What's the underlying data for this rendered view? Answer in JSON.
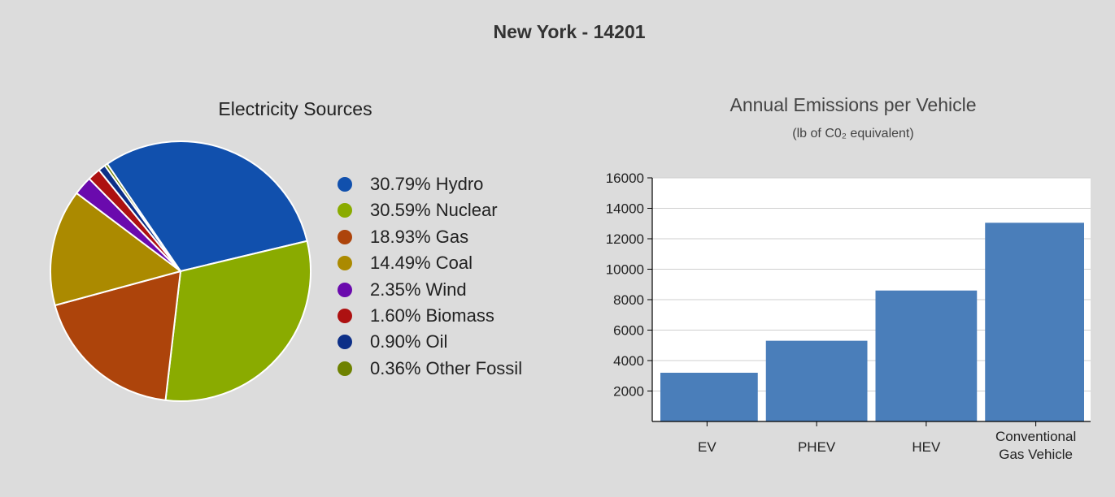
{
  "page": {
    "title": "New York - 14201"
  },
  "chart_data": [
    {
      "type": "pie",
      "title": "Electricity Sources",
      "slices": [
        {
          "label": "30.79% Hydro",
          "name": "Hydro",
          "value": 30.79,
          "color": "#1150ad"
        },
        {
          "label": "30.59% Nuclear",
          "name": "Nuclear",
          "value": 30.59,
          "color": "#8aab00"
        },
        {
          "label": "18.93% Gas",
          "name": "Gas",
          "value": 18.93,
          "color": "#ad440b"
        },
        {
          "label": "14.49% Coal",
          "name": "Coal",
          "value": 14.49,
          "color": "#ab8a00"
        },
        {
          "label": "2.35% Wind",
          "name": "Wind",
          "value": 2.35,
          "color": "#6a0aad"
        },
        {
          "label": "1.60% Biomass",
          "name": "Biomass",
          "value": 1.6,
          "color": "#ad1111"
        },
        {
          "label": "0.90% Oil",
          "name": "Oil",
          "value": 0.9,
          "color": "#0d2f87"
        },
        {
          "label": "0.36% Other Fossil",
          "name": "Other Fossil",
          "value": 0.36,
          "color": "#6e8200"
        }
      ],
      "legend_position": "right"
    },
    {
      "type": "bar",
      "title": "Annual Emissions per Vehicle",
      "subtitle": "(lb of C0₂ equivalent)",
      "categories": [
        "EV",
        "PHEV",
        "HEV",
        "Conventional Gas Vehicle"
      ],
      "category_lines": [
        [
          "EV"
        ],
        [
          "PHEV"
        ],
        [
          "HEV"
        ],
        [
          "Conventional",
          "Gas Vehicle"
        ]
      ],
      "values": [
        3200,
        5300,
        8600,
        13050
      ],
      "yticks": [
        2000,
        4000,
        6000,
        8000,
        10000,
        12000,
        14000,
        16000
      ],
      "ylim": [
        0,
        16000
      ],
      "bar_color": "#4a7eba",
      "grid": true
    }
  ]
}
